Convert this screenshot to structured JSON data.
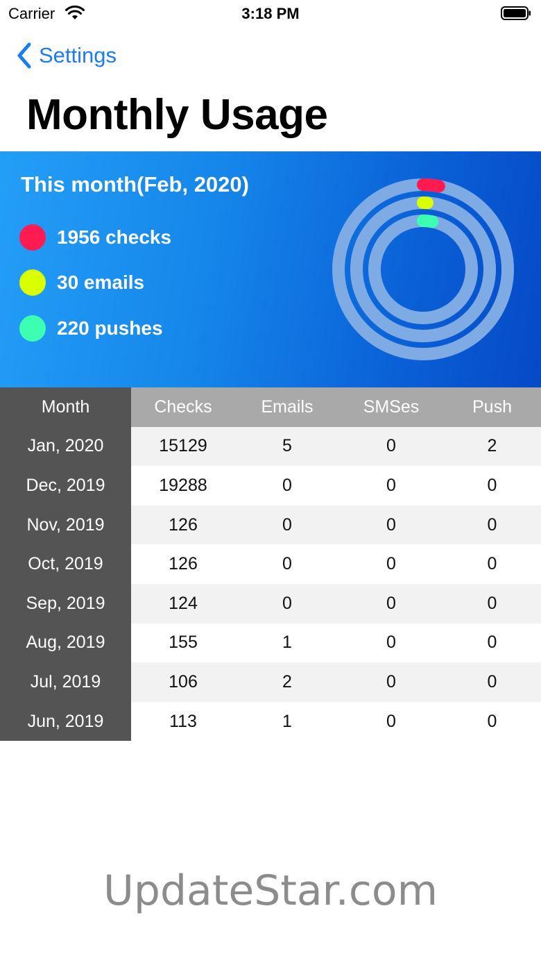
{
  "status_bar": {
    "carrier": "Carrier",
    "time": "3:18 PM"
  },
  "nav": {
    "back_label": "Settings"
  },
  "page_title": "Monthly Usage",
  "summary": {
    "title": "This month(Feb, 2020)",
    "items": [
      {
        "label": "1956 checks",
        "color": "#ff1a52"
      },
      {
        "label": "30 emails",
        "color": "#d9ff00"
      },
      {
        "label": "220 pushes",
        "color": "#3dffb1"
      }
    ],
    "rings": {
      "track_color": "#7eabe3",
      "checks_fraction": 0.03,
      "emails_fraction": 0.01,
      "pushes_fraction": 0.03
    }
  },
  "table": {
    "headers": [
      "Month",
      "Checks",
      "Emails",
      "SMSes",
      "Push"
    ],
    "rows": [
      [
        "Jan, 2020",
        "15129",
        "5",
        "0",
        "2"
      ],
      [
        "Dec, 2019",
        "19288",
        "0",
        "0",
        "0"
      ],
      [
        "Nov, 2019",
        "126",
        "0",
        "0",
        "0"
      ],
      [
        "Oct, 2019",
        "126",
        "0",
        "0",
        "0"
      ],
      [
        "Sep, 2019",
        "124",
        "0",
        "0",
        "0"
      ],
      [
        "Aug, 2019",
        "155",
        "1",
        "0",
        "0"
      ],
      [
        "Jul, 2019",
        "106",
        "2",
        "0",
        "0"
      ],
      [
        "Jun, 2019",
        "113",
        "1",
        "0",
        "0"
      ]
    ]
  },
  "watermark": "UpdateStar.com"
}
